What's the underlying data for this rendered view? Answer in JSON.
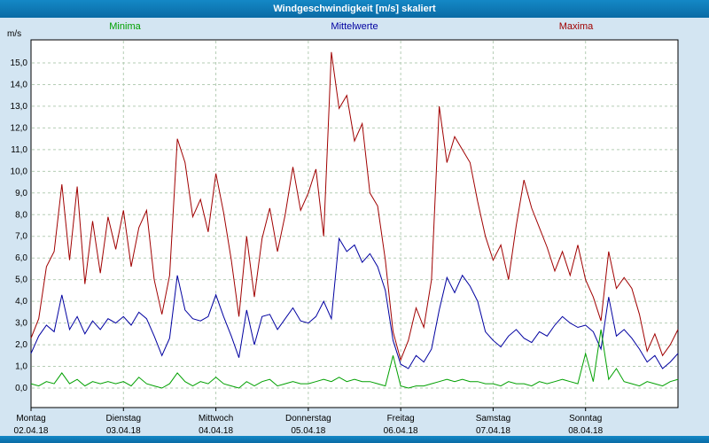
{
  "window": {
    "title": "Windgeschwindigkeit [m/s] skaliert"
  },
  "colors": {
    "titlebar": "#0b6fa8",
    "background": "#d3e5f2",
    "plot_background": "#ffffff",
    "plot_border": "#000000",
    "grid": "#b5cdb5",
    "minima": "#00a000",
    "mittelwerte": "#0000a0",
    "maxima": "#a00000"
  },
  "legend": [
    {
      "label": "Minima",
      "color": "#00a000"
    },
    {
      "label": "Mittelwerte",
      "color": "#0000a0"
    },
    {
      "label": "Maxima",
      "color": "#a00000"
    }
  ],
  "chart_data": {
    "type": "line",
    "title": "Windgeschwindigkeit [m/s] skaliert",
    "xlabel": "",
    "ylabel": "m/s",
    "ylim": [
      0,
      15
    ],
    "y_tick_step": 1.0,
    "y_tick_labels": [
      "0,0",
      "1,0",
      "2,0",
      "3,0",
      "4,0",
      "5,0",
      "6,0",
      "7,0",
      "8,0",
      "9,0",
      "10,0",
      "11,0",
      "12,0",
      "13,0",
      "14,0",
      "15,0"
    ],
    "grid": true,
    "grid_style": "dashed",
    "legend_position": "top",
    "x_days": [
      {
        "name": "Montag",
        "date": "02.04.18"
      },
      {
        "name": "Dienstag",
        "date": "03.04.18"
      },
      {
        "name": "Mittwoch",
        "date": "04.04.18"
      },
      {
        "name": "Donnerstag",
        "date": "05.04.18"
      },
      {
        "name": "Freitag",
        "date": "06.04.18"
      },
      {
        "name": "Samstag",
        "date": "07.04.18"
      },
      {
        "name": "Sonntag",
        "date": "08.04.18"
      }
    ],
    "points_per_day": 12,
    "series": [
      {
        "name": "Minima",
        "color": "#00a000",
        "values": [
          0.2,
          0.1,
          0.3,
          0.2,
          0.7,
          0.2,
          0.4,
          0.1,
          0.3,
          0.2,
          0.3,
          0.2,
          0.3,
          0.1,
          0.5,
          0.2,
          0.1,
          0.0,
          0.2,
          0.7,
          0.3,
          0.1,
          0.3,
          0.2,
          0.5,
          0.2,
          0.1,
          0.0,
          0.3,
          0.1,
          0.3,
          0.4,
          0.1,
          0.2,
          0.3,
          0.2,
          0.2,
          0.3,
          0.4,
          0.3,
          0.5,
          0.3,
          0.4,
          0.3,
          0.3,
          0.2,
          0.1,
          1.5,
          0.1,
          0.0,
          0.1,
          0.1,
          0.2,
          0.3,
          0.4,
          0.3,
          0.4,
          0.3,
          0.3,
          0.2,
          0.2,
          0.1,
          0.3,
          0.2,
          0.2,
          0.1,
          0.3,
          0.2,
          0.3,
          0.4,
          0.3,
          0.2,
          1.6,
          0.3,
          2.7,
          0.4,
          0.9,
          0.3,
          0.2,
          0.1,
          0.3,
          0.2,
          0.1,
          0.3,
          0.4
        ]
      },
      {
        "name": "Mittelwerte",
        "color": "#0000a0",
        "values": [
          1.6,
          2.4,
          2.9,
          2.6,
          4.3,
          2.7,
          3.3,
          2.5,
          3.1,
          2.7,
          3.2,
          3.0,
          3.3,
          2.9,
          3.5,
          3.2,
          2.4,
          1.5,
          2.3,
          5.2,
          3.6,
          3.2,
          3.1,
          3.3,
          4.3,
          3.3,
          2.4,
          1.4,
          3.6,
          2.0,
          3.3,
          3.4,
          2.7,
          3.2,
          3.7,
          3.1,
          3.0,
          3.3,
          4.0,
          3.2,
          6.9,
          6.3,
          6.6,
          5.8,
          6.2,
          5.6,
          4.5,
          2.2,
          1.1,
          0.9,
          1.5,
          1.2,
          1.8,
          3.6,
          5.1,
          4.4,
          5.2,
          4.7,
          4.0,
          2.6,
          2.2,
          1.9,
          2.4,
          2.7,
          2.3,
          2.1,
          2.6,
          2.4,
          2.9,
          3.3,
          3.0,
          2.8,
          2.9,
          2.6,
          1.8,
          4.2,
          2.4,
          2.7,
          2.3,
          1.8,
          1.2,
          1.5,
          0.9,
          1.2,
          1.6
        ]
      },
      {
        "name": "Maxima",
        "color": "#a00000",
        "values": [
          2.3,
          3.2,
          5.6,
          6.3,
          9.4,
          5.9,
          9.3,
          4.8,
          7.7,
          5.3,
          7.9,
          6.4,
          8.2,
          5.6,
          7.4,
          8.2,
          5.0,
          3.4,
          5.2,
          11.5,
          10.4,
          7.9,
          8.7,
          7.2,
          9.9,
          8.1,
          5.9,
          3.3,
          7.0,
          4.2,
          6.9,
          8.3,
          6.3,
          8.0,
          10.2,
          8.2,
          9.0,
          10.1,
          7.0,
          15.5,
          12.9,
          13.5,
          11.4,
          12.2,
          9.0,
          8.4,
          5.9,
          2.6,
          1.3,
          2.2,
          3.7,
          2.8,
          5.0,
          13.0,
          10.4,
          11.6,
          11.0,
          10.4,
          8.6,
          7.0,
          5.9,
          6.6,
          5.0,
          7.5,
          9.6,
          8.3,
          7.4,
          6.5,
          5.4,
          6.3,
          5.2,
          6.6,
          5.0,
          4.2,
          3.1,
          6.3,
          4.6,
          5.1,
          4.6,
          3.4,
          1.7,
          2.5,
          1.5,
          2.0,
          2.7
        ]
      }
    ]
  }
}
